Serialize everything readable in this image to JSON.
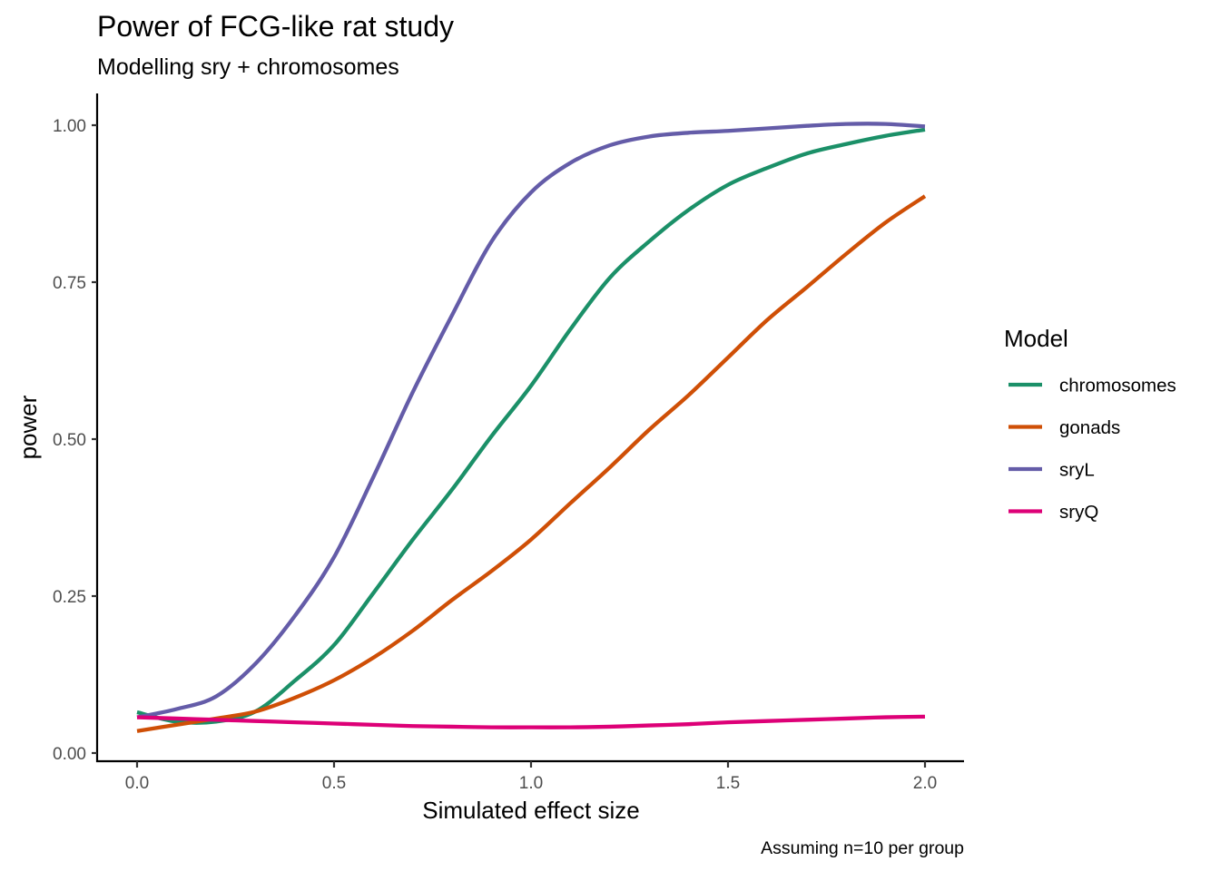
{
  "chart_data": {
    "type": "line",
    "title": "Power of FCG-like rat study",
    "subtitle": "Modelling sry + chromosomes",
    "xlabel": "Simulated effect size",
    "ylabel": "power",
    "caption": "Assuming n=10 per group",
    "xlim": [
      -0.1,
      2.1
    ],
    "ylim": [
      -0.012,
      1.05
    ],
    "xticks": [
      0.0,
      0.5,
      1.0,
      1.5,
      2.0
    ],
    "xtick_labels": [
      "0.0",
      "0.5",
      "1.0",
      "1.5",
      "2.0"
    ],
    "yticks": [
      0.0,
      0.25,
      0.5,
      0.75,
      1.0
    ],
    "ytick_labels": [
      "0.00",
      "0.25",
      "0.50",
      "0.75",
      "1.00"
    ],
    "grid": false,
    "legend": {
      "title": "Model",
      "position": "right"
    },
    "x": [
      0.0,
      0.1,
      0.2,
      0.3,
      0.4,
      0.5,
      0.6,
      0.7,
      0.8,
      0.9,
      1.0,
      1.1,
      1.2,
      1.3,
      1.4,
      1.5,
      1.6,
      1.7,
      1.8,
      1.9,
      2.0
    ],
    "series": [
      {
        "name": "chromosomes",
        "color": "#1B9068",
        "values": [
          0.065,
          0.05,
          0.05,
          0.066,
          0.115,
          0.172,
          0.255,
          0.34,
          0.42,
          0.505,
          0.585,
          0.675,
          0.757,
          0.815,
          0.865,
          0.905,
          0.932,
          0.955,
          0.97,
          0.983,
          0.993
        ]
      },
      {
        "name": "gonads",
        "color": "#CF4F06",
        "values": [
          0.035,
          0.045,
          0.055,
          0.066,
          0.088,
          0.116,
          0.152,
          0.195,
          0.244,
          0.29,
          0.34,
          0.398,
          0.455,
          0.515,
          0.57,
          0.63,
          0.69,
          0.742,
          0.795,
          0.845,
          0.887
        ]
      },
      {
        "name": "sryL",
        "color": "#645CA8",
        "values": [
          0.057,
          0.07,
          0.09,
          0.142,
          0.218,
          0.312,
          0.44,
          0.575,
          0.698,
          0.815,
          0.893,
          0.94,
          0.968,
          0.982,
          0.988,
          0.991,
          0.995,
          0.999,
          1.002,
          1.002,
          0.998
        ]
      },
      {
        "name": "sryQ",
        "color": "#DD0077",
        "values": [
          0.057,
          0.055,
          0.053,
          0.051,
          0.049,
          0.047,
          0.045,
          0.043,
          0.042,
          0.041,
          0.041,
          0.041,
          0.042,
          0.044,
          0.046,
          0.049,
          0.051,
          0.053,
          0.055,
          0.057,
          0.058
        ]
      }
    ]
  }
}
